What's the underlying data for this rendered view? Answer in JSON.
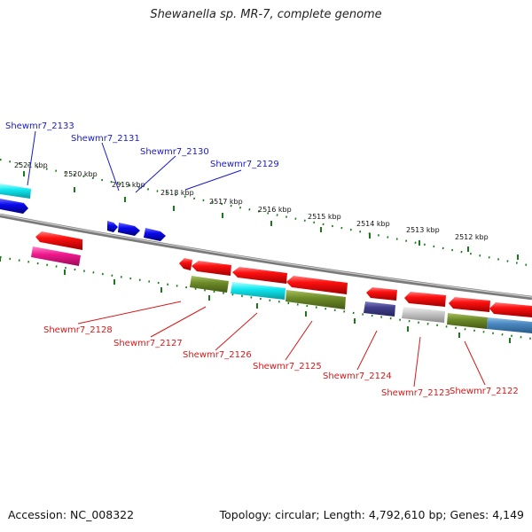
{
  "title": "Shewanella sp. MR-7, complete genome",
  "footer": {
    "accession": "Accession: NC_008322",
    "summary": "Topology: circular; Length: 4,792,610 bp; Genes: 4,149"
  },
  "colors": {
    "forward_label": "#1a1ac8",
    "reverse_label": "#d81818",
    "backbone": "#8a8a8a",
    "tick": "#1a7a1a"
  },
  "ticks": [
    "2521 kbp",
    "2520 kbp",
    "2519 kbp",
    "2518 kbp",
    "2517 kbp",
    "2516 kbp",
    "2515 kbp",
    "2514 kbp",
    "2513 kbp",
    "2512 kbp"
  ],
  "forward_labels": [
    "Shewmr7_2133",
    "Shewmr7_2131",
    "Shewmr7_2130",
    "Shewmr7_2129"
  ],
  "reverse_labels": [
    "Shewmr7_2128",
    "Shewmr7_2127",
    "Shewmr7_2126",
    "Shewmr7_2125",
    "Shewmr7_2124",
    "Shewmr7_2123",
    "Shewmr7_2122"
  ]
}
